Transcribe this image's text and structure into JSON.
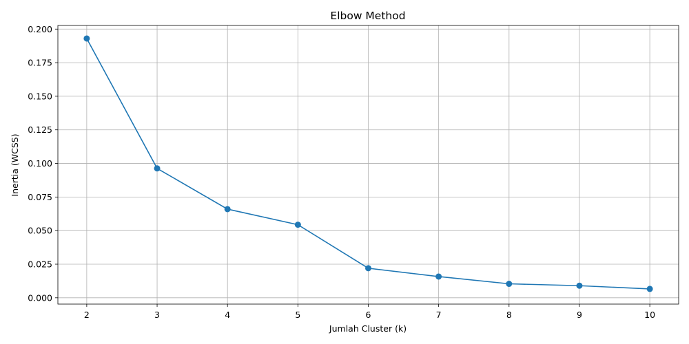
{
  "chart_data": {
    "type": "line",
    "title": "Elbow Method",
    "xlabel": "Jumlah Cluster (k)",
    "ylabel": "Inertia (WCSS)",
    "x": [
      2,
      3,
      4,
      5,
      6,
      7,
      8,
      9,
      10
    ],
    "series": [
      {
        "values": [
          0.193,
          0.0963,
          0.066,
          0.0544,
          0.022,
          0.0158,
          0.0104,
          0.009,
          0.0066
        ],
        "color": "#1f77b4",
        "marker": "circle"
      }
    ],
    "xticks": [
      "2",
      "3",
      "4",
      "5",
      "6",
      "7",
      "8",
      "9",
      "10"
    ],
    "yticks": [
      "0.000",
      "0.025",
      "0.050",
      "0.075",
      "0.100",
      "0.125",
      "0.150",
      "0.175",
      "0.200"
    ],
    "xlim": [
      1.59,
      10.41
    ],
    "ylim": [
      -0.0047,
      0.2027
    ],
    "grid": true
  }
}
